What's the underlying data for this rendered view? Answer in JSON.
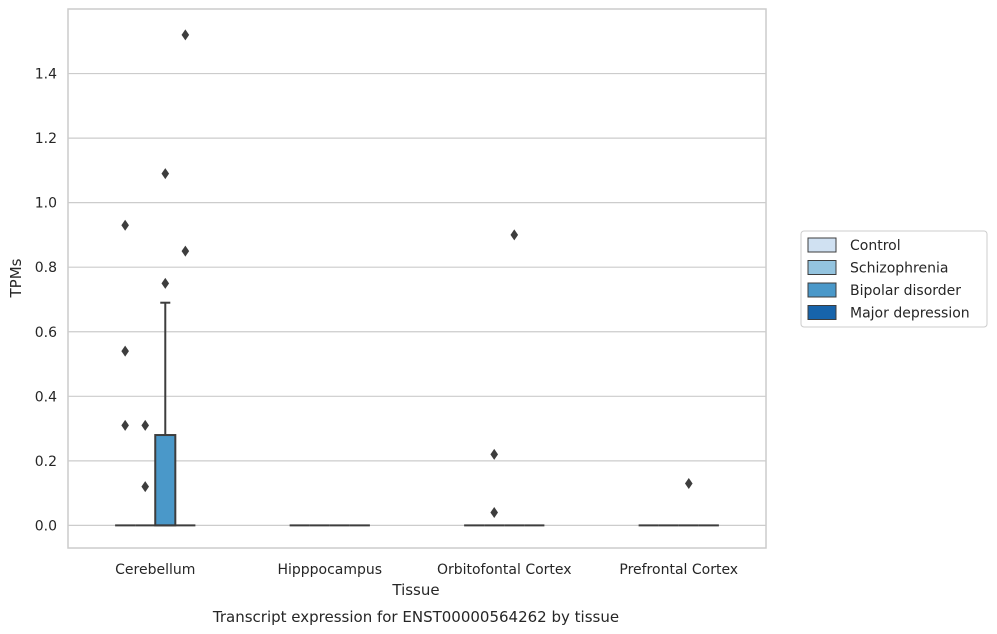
{
  "chart_data": {
    "type": "box",
    "title": "",
    "caption": "Transcript expression for ENST00000564262 by tissue",
    "xlabel": "Tissue",
    "ylabel": "TPMs",
    "ylim": [
      -0.07,
      1.6
    ],
    "yticks": [
      0.0,
      0.2,
      0.4,
      0.6,
      0.8,
      1.0,
      1.2,
      1.4
    ],
    "ytick_labels": [
      "0.0",
      "0.2",
      "0.4",
      "0.6",
      "0.8",
      "1.0",
      "1.2",
      "1.4"
    ],
    "grid": "horizontal",
    "legend_position": "right",
    "categories": [
      "Cerebellum",
      "Hipppocampus",
      "Orbitofontal Cortex",
      "Prefrontal Cortex"
    ],
    "series": [
      {
        "name": "Control",
        "color": "#d0e1f2"
      },
      {
        "name": "Schizophrenia",
        "color": "#94c4df"
      },
      {
        "name": "Bipolar disorder",
        "color": "#4a98c9"
      },
      {
        "name": "Major depression",
        "color": "#1764ab"
      }
    ],
    "boxes": [
      {
        "category": 0,
        "series": 0,
        "q1": 0,
        "median": 0,
        "q3": 0,
        "whisker_low": 0,
        "whisker_high": 0,
        "outliers": [
          0.93,
          0.54,
          0.31
        ]
      },
      {
        "category": 0,
        "series": 1,
        "q1": 0,
        "median": 0,
        "q3": 0,
        "whisker_low": 0,
        "whisker_high": 0,
        "outliers": [
          0.31,
          0.12
        ]
      },
      {
        "category": 0,
        "series": 2,
        "q1": 0,
        "median": 0,
        "q3": 0.28,
        "whisker_low": 0,
        "whisker_high": 0.69,
        "outliers": [
          1.09,
          0.75
        ]
      },
      {
        "category": 0,
        "series": 3,
        "q1": 0,
        "median": 0,
        "q3": 0,
        "whisker_low": 0,
        "whisker_high": 0,
        "outliers": [
          1.52,
          0.85
        ]
      },
      {
        "category": 1,
        "series": 0,
        "q1": 0,
        "median": 0,
        "q3": 0,
        "whisker_low": 0,
        "whisker_high": 0,
        "outliers": []
      },
      {
        "category": 1,
        "series": 1,
        "q1": 0,
        "median": 0,
        "q3": 0,
        "whisker_low": 0,
        "whisker_high": 0,
        "outliers": []
      },
      {
        "category": 1,
        "series": 2,
        "q1": 0,
        "median": 0,
        "q3": 0,
        "whisker_low": 0,
        "whisker_high": 0,
        "outliers": []
      },
      {
        "category": 1,
        "series": 3,
        "q1": 0,
        "median": 0,
        "q3": 0,
        "whisker_low": 0,
        "whisker_high": 0,
        "outliers": []
      },
      {
        "category": 2,
        "series": 0,
        "q1": 0,
        "median": 0,
        "q3": 0,
        "whisker_low": 0,
        "whisker_high": 0,
        "outliers": []
      },
      {
        "category": 2,
        "series": 1,
        "q1": 0,
        "median": 0,
        "q3": 0,
        "whisker_low": 0,
        "whisker_high": 0,
        "outliers": [
          0.22,
          0.04
        ]
      },
      {
        "category": 2,
        "series": 2,
        "q1": 0,
        "median": 0,
        "q3": 0,
        "whisker_low": 0,
        "whisker_high": 0,
        "outliers": [
          0.9
        ]
      },
      {
        "category": 2,
        "series": 3,
        "q1": 0,
        "median": 0,
        "q3": 0,
        "whisker_low": 0,
        "whisker_high": 0,
        "outliers": []
      },
      {
        "category": 3,
        "series": 0,
        "q1": 0,
        "median": 0,
        "q3": 0,
        "whisker_low": 0,
        "whisker_high": 0,
        "outliers": []
      },
      {
        "category": 3,
        "series": 1,
        "q1": 0,
        "median": 0,
        "q3": 0,
        "whisker_low": 0,
        "whisker_high": 0,
        "outliers": []
      },
      {
        "category": 3,
        "series": 2,
        "q1": 0,
        "median": 0,
        "q3": 0,
        "whisker_low": 0,
        "whisker_high": 0,
        "outliers": [
          0.13
        ]
      },
      {
        "category": 3,
        "series": 3,
        "q1": 0,
        "median": 0,
        "q3": 0,
        "whisker_low": 0,
        "whisker_high": 0,
        "outliers": []
      }
    ]
  }
}
